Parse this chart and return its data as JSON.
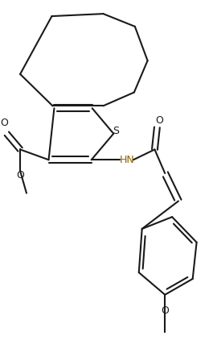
{
  "bg_color": "#ffffff",
  "line_color": "#1a1a1a",
  "N_color": "#8B6400",
  "lw": 1.5,
  "fs": 9,
  "figsize": [
    2.65,
    4.28
  ],
  "dpi": 100,
  "xlim": [
    0,
    265
  ],
  "ylim": [
    0,
    428
  ]
}
